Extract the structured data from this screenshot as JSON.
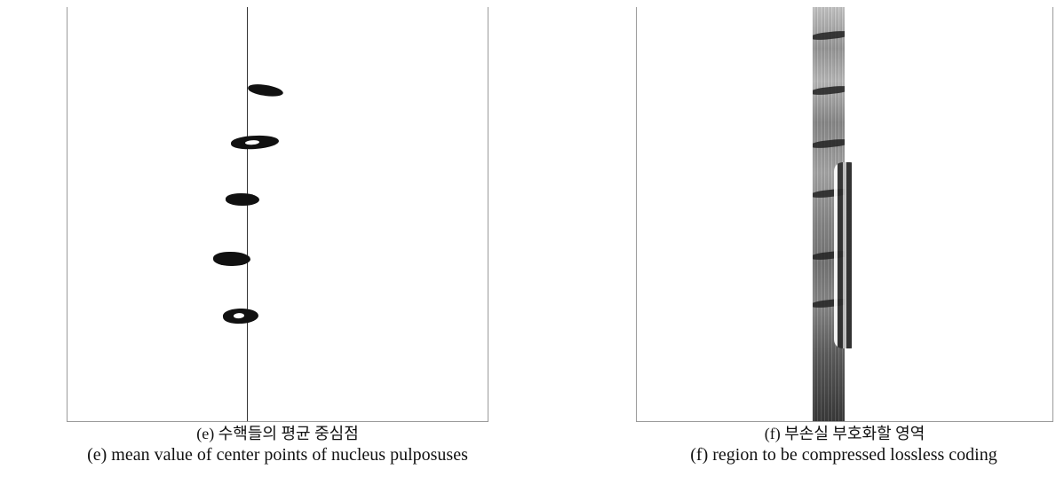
{
  "figure": {
    "panel_e": {
      "caption_korean": "(e) 수핵들의 평균 중심점",
      "caption_english": "(e) mean value of center points of nucleus pulposuses"
    },
    "panel_f": {
      "caption_korean": "(f) 부손실 부호화할 영역",
      "caption_english": "(f) region to be compressed lossless coding"
    }
  }
}
